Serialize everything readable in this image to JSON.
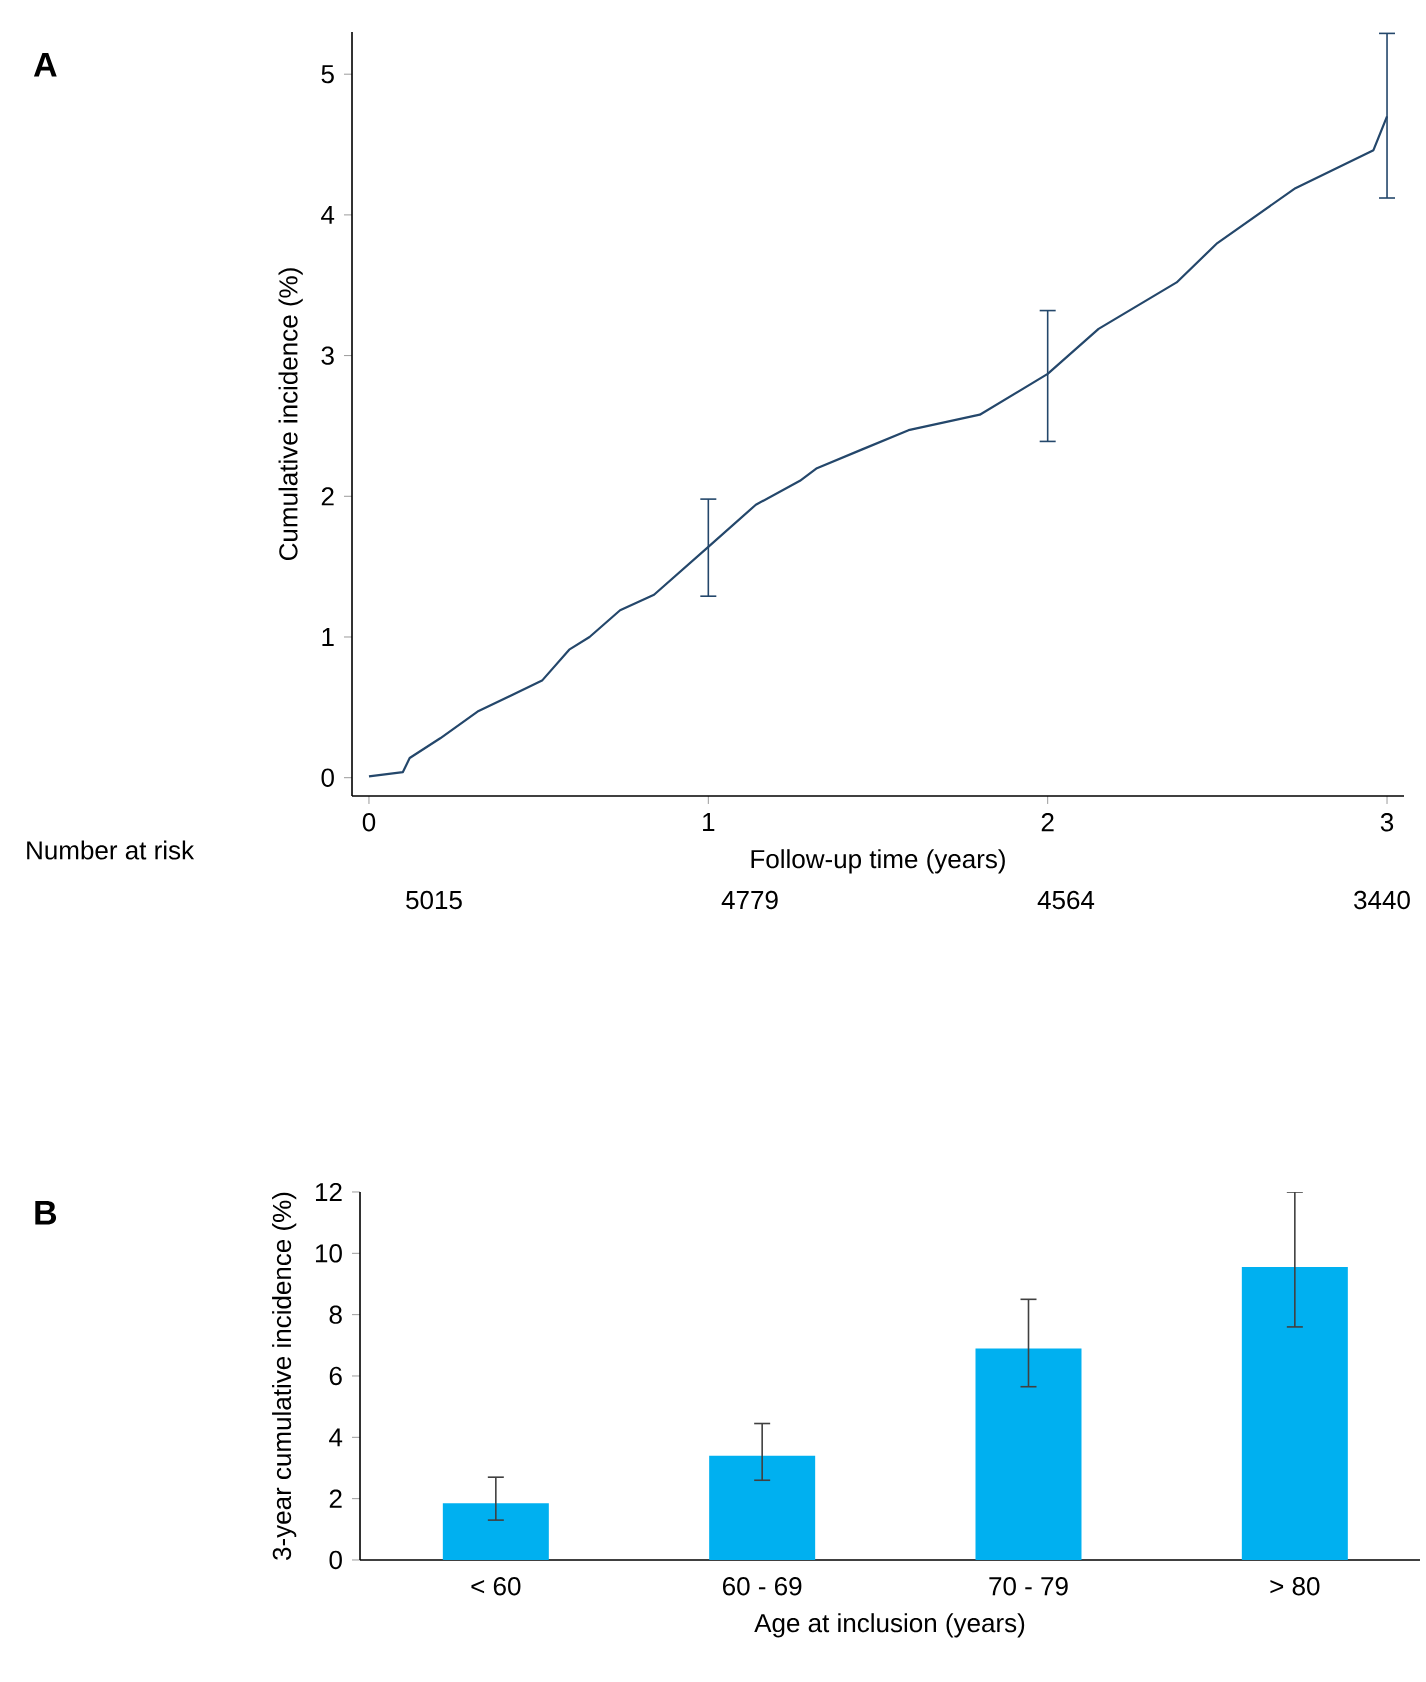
{
  "chart_data": [
    {
      "type": "line",
      "xlabel": "Follow-up time (years)",
      "ylabel": "Cumulative incidence (%)",
      "xlim": [
        -0.05,
        3.05
      ],
      "ylim": [
        -0.13,
        5.3
      ],
      "xticks": [
        0,
        1,
        2,
        3
      ],
      "yticks": [
        0,
        1,
        2,
        3,
        4,
        5
      ],
      "marker": "none",
      "line_style": "solid",
      "annotations": [
        "A",
        "Number at risk",
        "5015",
        "4779",
        "4564",
        "3440"
      ],
      "series": [
        {
          "color": "#24476b",
          "x": [
            0,
            0.1,
            0.12,
            0.21,
            0.32,
            0.51,
            0.59,
            0.65,
            0.74,
            0.84,
            1.0,
            1.14,
            1.27,
            1.32,
            1.45,
            1.59,
            1.8,
            2.0,
            2.15,
            2.38,
            2.5,
            2.73,
            2.96,
            3.0
          ],
          "values": [
            0.01,
            0.04,
            0.14,
            0.28,
            0.47,
            0.69,
            0.91,
            1.0,
            1.19,
            1.3,
            1.64,
            1.94,
            2.11,
            2.2,
            2.33,
            2.47,
            2.58,
            2.87,
            3.19,
            3.52,
            3.8,
            4.19,
            4.46,
            4.7
          ],
          "errors": [
            null,
            null,
            null,
            null,
            null,
            null,
            null,
            null,
            null,
            null,
            [
              1.29,
              1.98
            ],
            null,
            null,
            null,
            null,
            null,
            null,
            [
              2.39,
              3.32
            ],
            null,
            null,
            null,
            null,
            null,
            [
              4.12,
              5.29
            ]
          ]
        }
      ]
    },
    {
      "type": "bar",
      "xlabel": "Age at inclusion (years)",
      "ylabel": "3-year cumulative incidence (%)",
      "ylim": [
        0,
        12
      ],
      "yticks": [
        0,
        2,
        4,
        6,
        8,
        10,
        12
      ],
      "annotations": [
        "B"
      ],
      "categories": [
        "< 60",
        "60 - 69",
        "70 - 79",
        "> 80"
      ],
      "series": [
        {
          "color": "#00b0f0",
          "values": [
            1.85,
            3.4,
            6.9,
            9.55
          ],
          "errors": [
            [
              1.3,
              2.7
            ],
            [
              2.6,
              4.45
            ],
            [
              5.65,
              8.5
            ],
            [
              7.6,
              12.0
            ]
          ]
        }
      ]
    }
  ]
}
